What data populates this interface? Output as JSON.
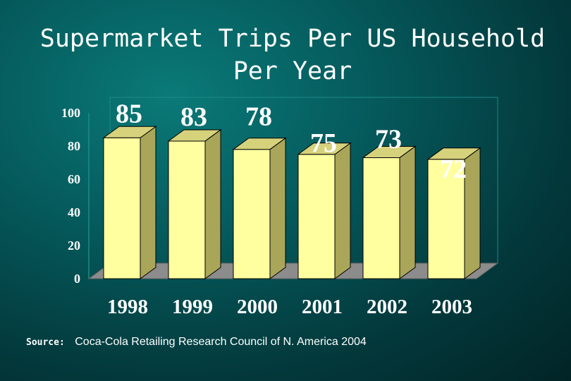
{
  "slide": {
    "title_line1": "Supermarket Trips Per US Household",
    "title_line2": "Per Year",
    "source_label": "Source:",
    "source_text": "Coca-Cola Retailing Research Council of N. America 2004"
  },
  "colors": {
    "bar_front": "#ffffa0",
    "bar_side": "#a9a65a",
    "bar_top": "#d6d27c",
    "floor": "#8c8c8c",
    "axis": "#1d8a86"
  },
  "chart_data": {
    "type": "bar",
    "title": "Supermarket Trips Per US Household Per Year",
    "categories": [
      "1998",
      "1999",
      "2000",
      "2001",
      "2002",
      "2003"
    ],
    "values": [
      85,
      83,
      78,
      75,
      73,
      72
    ],
    "data_labels": [
      "85",
      "83",
      "78",
      "75",
      "73",
      "72"
    ],
    "yticks": [
      "0",
      "20",
      "40",
      "60",
      "80",
      "100"
    ],
    "ylim": [
      0,
      100
    ],
    "xlabel": "",
    "ylabel": "",
    "style": "3d-column"
  }
}
